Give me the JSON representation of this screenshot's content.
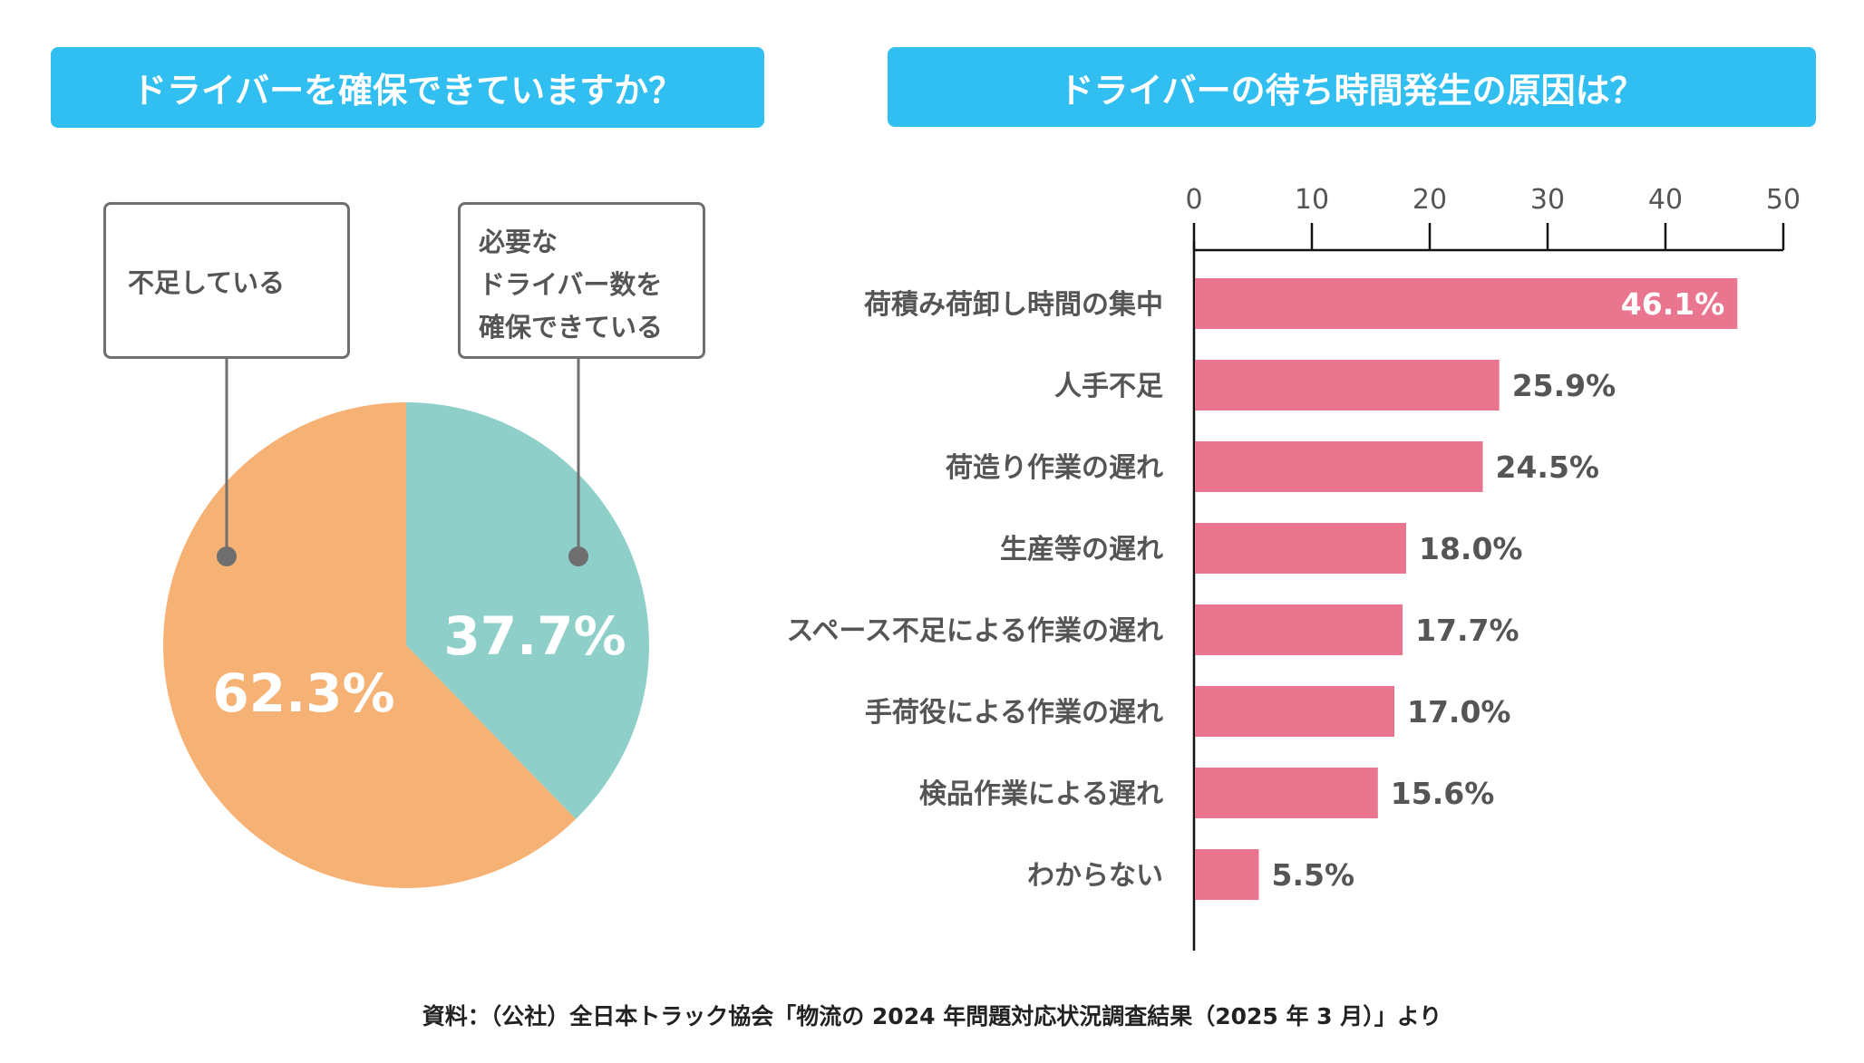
{
  "left_panel": {
    "title": "ドライバーを確保できていますか？",
    "callouts": [
      {
        "lines": [
          "不足している"
        ]
      },
      {
        "lines": [
          "必要な",
          "ドライバー数を",
          "確保できている"
        ]
      }
    ]
  },
  "right_panel": {
    "title": "ドライバーの待ち時間発生の原因は？"
  },
  "source_note": "資料：（公社）全日本トラック協会「物流の 2024 年問題対応状況調査結果（2025 年 3 月）」より",
  "colors": {
    "header_blue": "#31BEF0",
    "pie_shortage": "#F5B274",
    "pie_secured": "#8ECFC9",
    "bar_pink": "#EA758F",
    "text_gray": "#555555"
  },
  "chart_data": [
    {
      "type": "pie",
      "title": "ドライバーを確保できていますか？",
      "slices": [
        {
          "label": "必要なドライバー数を確保できている",
          "value": 37.7,
          "display": "37.7%",
          "color": "#8ECFC9"
        },
        {
          "label": "不足している",
          "value": 62.3,
          "display": "62.3%",
          "color": "#F5B274"
        }
      ],
      "start": "12 o'clock, clockwise"
    },
    {
      "type": "bar",
      "orientation": "horizontal",
      "title": "ドライバーの待ち時間発生の原因は？",
      "categories": [
        "荷積み荷卸し時間の集中",
        "人手不足",
        "荷造り作業の遅れ",
        "生産等の遅れ",
        "スペース不足による作業の遅れ",
        "手荷役による作業の遅れ",
        "検品作業による遅れ",
        "わからない"
      ],
      "values": [
        46.1,
        25.9,
        24.5,
        18.0,
        17.7,
        17.0,
        15.6,
        5.5
      ],
      "labels": [
        "46.1%",
        "25.9%",
        "24.5%",
        "18.0%",
        "17.7%",
        "17.0%",
        "15.6%",
        "5.5%"
      ],
      "xlim": [
        0,
        50
      ],
      "xticks": [
        0,
        10,
        20,
        30,
        40,
        50
      ],
      "axis_position": "top",
      "grid": false,
      "xlabel": "",
      "ylabel": ""
    }
  ]
}
